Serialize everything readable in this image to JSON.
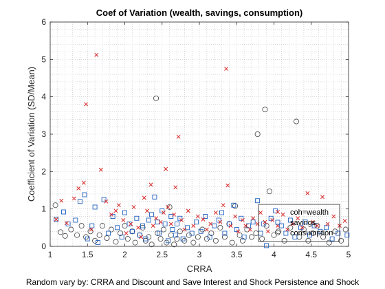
{
  "chart_data": {
    "type": "scatter",
    "title": "Coef of Variation (wealth, savings, consumption)",
    "xlabel": "CRRA",
    "ylabel": "Coefficient of Variation (SD/Mean)",
    "caption": "Random vary by: CRRA and Discount and Save Interest and Shock Persistence and Shock",
    "xlim": [
      1,
      5
    ],
    "ylim": [
      0,
      6
    ],
    "xticks": [
      "1",
      "1.5",
      "2",
      "2.5",
      "3",
      "3.5",
      "4",
      "4.5",
      "5"
    ],
    "yticks": [
      "0",
      "1",
      "2",
      "3",
      "4",
      "5",
      "6"
    ],
    "grid": "minor-dotted",
    "legend_placement": "bottom-right",
    "colors": {
      "coh": "#d62728",
      "savings": "#1f5fbf",
      "consumption": "#404040"
    },
    "series": [
      {
        "name": "coh=wealth",
        "marker": "x",
        "points": [
          [
            1.08,
            0.72
          ],
          [
            1.15,
            1.22
          ],
          [
            1.22,
            0.62
          ],
          [
            1.32,
            1.28
          ],
          [
            1.38,
            1.55
          ],
          [
            1.45,
            1.7
          ],
          [
            1.48,
            3.8
          ],
          [
            1.55,
            0.45
          ],
          [
            1.62,
            5.12
          ],
          [
            1.68,
            2.05
          ],
          [
            1.75,
            1.2
          ],
          [
            1.82,
            0.85
          ],
          [
            1.88,
            0.95
          ],
          [
            1.92,
            1.1
          ],
          [
            1.98,
            0.7
          ],
          [
            2.02,
            0.35
          ],
          [
            2.08,
            0.6
          ],
          [
            2.12,
            1.05
          ],
          [
            2.18,
            0.5
          ],
          [
            2.22,
            0.25
          ],
          [
            2.26,
            1.3
          ],
          [
            2.3,
            0.95
          ],
          [
            2.35,
            1.65
          ],
          [
            2.38,
            0.55
          ],
          [
            2.42,
            0.75
          ],
          [
            2.48,
            0.65
          ],
          [
            2.52,
            0.9
          ],
          [
            2.55,
            2.07
          ],
          [
            2.58,
            1.05
          ],
          [
            2.62,
            0.6
          ],
          [
            2.66,
            0.85
          ],
          [
            2.68,
            1.58
          ],
          [
            2.72,
            2.93
          ],
          [
            2.76,
            0.7
          ],
          [
            2.8,
            0.45
          ],
          [
            2.85,
            0.95
          ],
          [
            2.92,
            0.55
          ],
          [
            2.98,
            0.8
          ],
          [
            3.05,
            0.72
          ],
          [
            3.1,
            0.45
          ],
          [
            3.15,
            0.6
          ],
          [
            3.22,
            0.9
          ],
          [
            3.28,
            0.65
          ],
          [
            3.32,
            1.1
          ],
          [
            3.36,
            4.75
          ],
          [
            3.38,
            1.63
          ],
          [
            3.42,
            0.55
          ],
          [
            3.48,
            0.8
          ],
          [
            3.52,
            0.4
          ],
          [
            3.58,
            0.7
          ],
          [
            3.62,
            0.55
          ],
          [
            3.68,
            0.45
          ],
          [
            3.72,
            0.75
          ],
          [
            3.78,
            0.6
          ],
          [
            3.82,
            0.9
          ],
          [
            3.88,
            0.65
          ],
          [
            3.92,
            0.4
          ],
          [
            3.98,
            0.7
          ],
          [
            4.05,
            0.55
          ],
          [
            4.12,
            0.85
          ],
          [
            4.18,
            0.45
          ],
          [
            4.25,
            0.6
          ],
          [
            4.32,
            0.75
          ],
          [
            4.38,
            0.5
          ],
          [
            4.45,
            1.42
          ],
          [
            4.52,
            0.65
          ],
          [
            4.58,
            0.55
          ],
          [
            4.65,
            1.32
          ],
          [
            4.72,
            0.6
          ],
          [
            4.8,
            0.8
          ],
          [
            4.88,
            0.55
          ],
          [
            4.95,
            0.68
          ]
        ]
      },
      {
        "name": "savings",
        "marker": "square",
        "points": [
          [
            1.08,
            0.72
          ],
          [
            1.18,
            0.92
          ],
          [
            1.24,
            0.6
          ],
          [
            1.34,
            0.7
          ],
          [
            1.4,
            1.2
          ],
          [
            1.46,
            1.38
          ],
          [
            1.5,
            0.2
          ],
          [
            1.56,
            0.55
          ],
          [
            1.6,
            1.05
          ],
          [
            1.64,
            0.1
          ],
          [
            1.72,
            1.25
          ],
          [
            1.78,
            0.35
          ],
          [
            1.84,
            0.8
          ],
          [
            1.9,
            0.5
          ],
          [
            1.96,
            0.25
          ],
          [
            2.0,
            0.9
          ],
          [
            2.06,
            0.6
          ],
          [
            2.1,
            0.4
          ],
          [
            2.16,
            0.75
          ],
          [
            2.2,
            0.3
          ],
          [
            2.24,
            0.55
          ],
          [
            2.28,
            0.2
          ],
          [
            2.32,
            0.7
          ],
          [
            2.36,
            0.85
          ],
          [
            2.4,
            1.32
          ],
          [
            2.44,
            0.65
          ],
          [
            2.46,
            0.35
          ],
          [
            2.5,
            0.95
          ],
          [
            2.54,
            0.6
          ],
          [
            2.58,
            0.15
          ],
          [
            2.62,
            0.8
          ],
          [
            2.64,
            0.45
          ],
          [
            2.68,
            0.3
          ],
          [
            2.7,
            0.6
          ],
          [
            2.74,
            0.75
          ],
          [
            2.78,
            0.2
          ],
          [
            2.84,
            0.5
          ],
          [
            2.9,
            0.35
          ],
          [
            2.96,
            0.65
          ],
          [
            3.02,
            0.4
          ],
          [
            3.08,
            0.8
          ],
          [
            3.14,
            0.25
          ],
          [
            3.2,
            0.55
          ],
          [
            3.26,
            0.7
          ],
          [
            3.3,
            0.9
          ],
          [
            3.34,
            0.35
          ],
          [
            3.4,
            0.6
          ],
          [
            3.46,
            1.1
          ],
          [
            3.5,
            0.45
          ],
          [
            3.56,
            0.75
          ],
          [
            3.6,
            0.25
          ],
          [
            3.66,
            0.55
          ],
          [
            3.72,
            0.65
          ],
          [
            3.78,
            1.22
          ],
          [
            3.82,
            0.35
          ],
          [
            3.86,
            0.6
          ],
          [
            3.9,
            0.02
          ],
          [
            3.96,
            0.75
          ],
          [
            4.02,
            0.95
          ],
          [
            4.1,
            0.55
          ],
          [
            4.16,
            0.35
          ],
          [
            4.22,
            0.7
          ],
          [
            4.28,
            0.25
          ],
          [
            4.36,
            0.5
          ],
          [
            4.42,
            0.65
          ],
          [
            4.48,
            0.3
          ],
          [
            4.54,
            0.55
          ],
          [
            4.62,
            0.4
          ],
          [
            4.7,
            0.5
          ],
          [
            4.78,
            0.2
          ],
          [
            4.86,
            0.35
          ],
          [
            4.98,
            0.3
          ]
        ]
      },
      {
        "name": "consumption",
        "marker": "circle",
        "points": [
          [
            1.07,
            1.1
          ],
          [
            1.14,
            0.38
          ],
          [
            1.2,
            0.28
          ],
          [
            1.28,
            0.45
          ],
          [
            1.36,
            0.3
          ],
          [
            1.42,
            0.55
          ],
          [
            1.48,
            0.25
          ],
          [
            1.54,
            0.4
          ],
          [
            1.6,
            0.15
          ],
          [
            1.66,
            0.3
          ],
          [
            1.7,
            0.55
          ],
          [
            1.76,
            0.22
          ],
          [
            1.82,
            0.45
          ],
          [
            1.88,
            0.12
          ],
          [
            1.94,
            0.35
          ],
          [
            2.0,
            0.55
          ],
          [
            2.04,
            0.2
          ],
          [
            2.1,
            0.4
          ],
          [
            2.14,
            0.1
          ],
          [
            2.2,
            0.3
          ],
          [
            2.24,
            0.5
          ],
          [
            2.28,
            0.15
          ],
          [
            2.32,
            0.25
          ],
          [
            2.36,
            0.05
          ],
          [
            2.42,
            3.96
          ],
          [
            2.44,
            0.35
          ],
          [
            2.48,
            0.2
          ],
          [
            2.52,
            0.45
          ],
          [
            2.56,
            0.1
          ],
          [
            2.6,
            1.05
          ],
          [
            2.62,
            0.3
          ],
          [
            2.66,
            0.05
          ],
          [
            2.7,
            0.2
          ],
          [
            2.74,
            0.4
          ],
          [
            2.8,
            0.15
          ],
          [
            2.86,
            0.3
          ],
          [
            2.92,
            0.1
          ],
          [
            2.98,
            0.25
          ],
          [
            3.04,
            0.45
          ],
          [
            3.1,
            0.2
          ],
          [
            3.16,
            0.35
          ],
          [
            3.22,
            0.15
          ],
          [
            3.28,
            0.5
          ],
          [
            3.34,
            0.25
          ],
          [
            3.4,
            0.6
          ],
          [
            3.44,
            0.1
          ],
          [
            3.48,
            1.08
          ],
          [
            3.54,
            0.3
          ],
          [
            3.58,
            0.15
          ],
          [
            3.64,
            0.45
          ],
          [
            3.7,
            0.25
          ],
          [
            3.76,
            0.35
          ],
          [
            3.78,
            3.0
          ],
          [
            3.84,
            0.2
          ],
          [
            3.88,
            3.66
          ],
          [
            3.9,
            0.55
          ],
          [
            3.94,
            1.47
          ],
          [
            4.0,
            0.3
          ],
          [
            4.06,
            0.4
          ],
          [
            4.14,
            0.15
          ],
          [
            4.22,
            0.5
          ],
          [
            4.3,
            3.34
          ],
          [
            4.34,
            0.25
          ],
          [
            4.4,
            0.45
          ],
          [
            4.46,
            0.15
          ],
          [
            4.52,
            0.35
          ],
          [
            4.58,
            0.55
          ],
          [
            4.66,
            0.25
          ],
          [
            4.74,
            0.1
          ],
          [
            4.82,
            0.4
          ],
          [
            4.9,
            0.15
          ],
          [
            4.96,
            0.45
          ]
        ]
      }
    ]
  }
}
